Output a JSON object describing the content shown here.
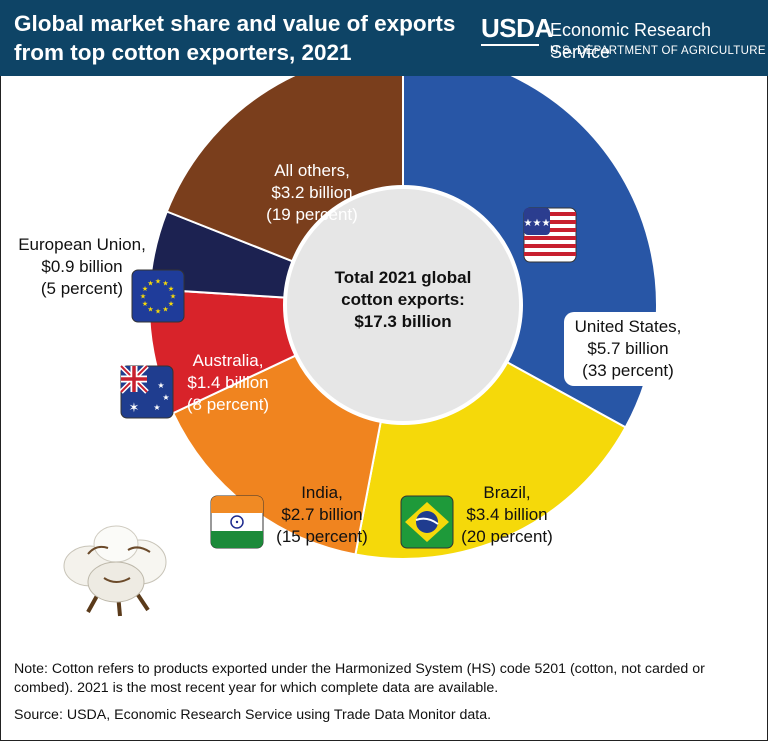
{
  "header": {
    "title": "Global market share and value of exports from top cotton exporters, 2021",
    "logo_text": "USDA",
    "agency": "Economic Research Service",
    "department": "U.S. DEPARTMENT OF AGRICULTURE"
  },
  "chart_data": {
    "type": "pie",
    "variant": "donut",
    "center_label": [
      "Total 2021 global",
      "cotton exports:",
      "$17.3 billion"
    ],
    "total_billion": 17.3,
    "slices": [
      {
        "name": "United States",
        "value": 5.7,
        "percent": 33,
        "color": "#2856a6",
        "label": [
          "United States,",
          "$5.7 billion",
          "(33 percent)"
        ],
        "flag": "us-flag-icon"
      },
      {
        "name": "Brazil",
        "value": 3.4,
        "percent": 20,
        "color": "#f5d90a",
        "label": [
          "Brazil,",
          "$3.4 billion",
          "(20 percent)"
        ],
        "flag": "brazil-flag-icon"
      },
      {
        "name": "India",
        "value": 2.7,
        "percent": 15,
        "color": "#f0841f",
        "label": [
          "India,",
          "$2.7 billion",
          "(15 percent)"
        ],
        "flag": "india-flag-icon"
      },
      {
        "name": "Australia",
        "value": 1.4,
        "percent": 8,
        "color": "#d8232a",
        "label": [
          "Australia,",
          "$1.4 billion",
          "(8 percent)"
        ],
        "flag": "australia-flag-icon"
      },
      {
        "name": "European Union",
        "value": 0.9,
        "percent": 5,
        "color": "#1c2251",
        "label": [
          "European Union,",
          "$0.9 billion",
          "(5 percent)"
        ],
        "flag": "eu-flag-icon"
      },
      {
        "name": "All others",
        "value": 3.2,
        "percent": 19,
        "color": "#7a3e1c",
        "label": [
          "All others,",
          "$3.2 billion",
          "(19 percent)"
        ],
        "flag": ""
      }
    ]
  },
  "footer": {
    "note": "Note: Cotton refers to products exported under the Harmonized System (HS) code 5201 (cotton, not carded or combed). 2021 is the most recent year for which complete data are available.",
    "source": "Source: USDA, Economic Research Service using Trade Data Monitor data."
  },
  "colors": {
    "header_bg": "#0e4466",
    "center_fill": "#e6e6e6"
  },
  "icons": [
    "cotton-boll-icon",
    "us-flag-icon",
    "brazil-flag-icon",
    "india-flag-icon",
    "australia-flag-icon",
    "eu-flag-icon"
  ]
}
